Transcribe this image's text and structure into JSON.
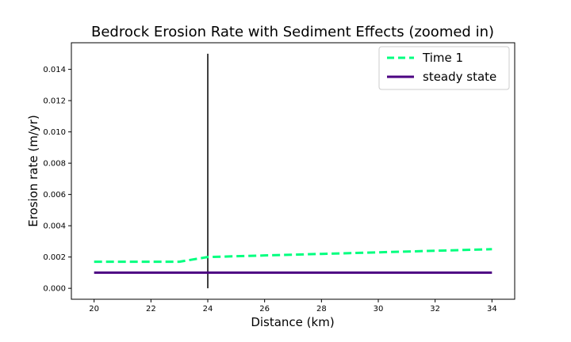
{
  "chart_data": {
    "type": "line",
    "title": "Bedrock Erosion Rate with Sediment Effects (zoomed in)",
    "xlabel": "Distance (km)",
    "ylabel": "Erosion rate (m/yr)",
    "xlim": [
      19.2,
      34.8
    ],
    "ylim": [
      -0.0007,
      0.0157
    ],
    "xticks": [
      "20",
      "22",
      "24",
      "26",
      "28",
      "30",
      "32",
      "34"
    ],
    "xtick_values": [
      20,
      22,
      24,
      26,
      28,
      30,
      32,
      34
    ],
    "yticks": [
      "0.000",
      "0.002",
      "0.004",
      "0.006",
      "0.008",
      "0.010",
      "0.012",
      "0.014"
    ],
    "ytick_values": [
      0,
      0.002,
      0.004,
      0.006,
      0.008,
      0.01,
      0.012,
      0.014
    ],
    "grid": false,
    "legend_position": "top-right",
    "series": [
      {
        "name": "Time 1",
        "color": "#00ff7f",
        "style": "dashed",
        "x": [
          20,
          21,
          22,
          23,
          24,
          25,
          26,
          27,
          28,
          29,
          30,
          31,
          32,
          33,
          34
        ],
        "y": [
          0.0017,
          0.0017,
          0.0017,
          0.0017,
          0.002,
          0.00205,
          0.0021,
          0.00215,
          0.0022,
          0.00225,
          0.0023,
          0.00235,
          0.0024,
          0.00245,
          0.0025
        ]
      },
      {
        "name": "steady state",
        "color": "#4b0082",
        "style": "solid",
        "x": [
          20,
          34
        ],
        "y": [
          0.001,
          0.001
        ]
      }
    ],
    "vertical_line": {
      "x": 24,
      "y": [
        0,
        0.015
      ],
      "color": "#000000"
    }
  }
}
